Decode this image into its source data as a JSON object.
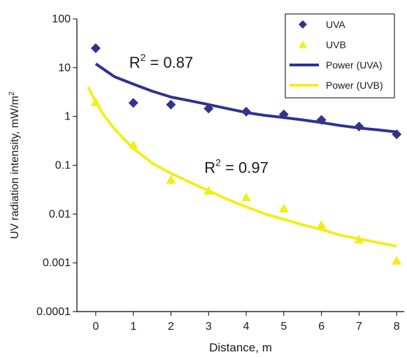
{
  "chart_data": {
    "type": "scatter",
    "xlabel": "Distance, m",
    "ylabel": "UV radiation intensity, mW/m",
    "ylabel_superscript": "2",
    "xlim": [
      -0.5,
      8.2
    ],
    "ylim": [
      0.0001,
      100
    ],
    "y_scale": "log",
    "x_ticks": [
      0,
      1,
      2,
      3,
      4,
      5,
      6,
      7,
      8
    ],
    "x_tick_labels": [
      "0",
      "1",
      "2",
      "3",
      "4",
      "5",
      "6",
      "7",
      "8"
    ],
    "y_ticks": [
      0.0001,
      0.001,
      0.01,
      0.1,
      1,
      10,
      100
    ],
    "y_tick_labels": [
      "0.0001",
      "0.001",
      "0.01",
      "0.1",
      "1",
      "10",
      "100"
    ],
    "grid": false,
    "legend_position": "top-right",
    "series": [
      {
        "name": "UVA",
        "marker": "diamond",
        "color": "#33338a",
        "x": [
          0,
          1,
          2,
          3,
          4,
          5,
          6,
          7,
          8
        ],
        "y": [
          25,
          1.9,
          1.75,
          1.45,
          1.25,
          1.1,
          0.85,
          0.62,
          0.43
        ]
      },
      {
        "name": "UVB",
        "marker": "triangle",
        "color": "#f2ee1c",
        "x": [
          0,
          1,
          2,
          3,
          4,
          5,
          6,
          7,
          8
        ],
        "y": [
          1.95,
          0.26,
          0.05,
          0.03,
          0.022,
          0.013,
          0.006,
          0.003,
          0.0011
        ]
      }
    ],
    "trendlines": [
      {
        "name": "Power (UVA)",
        "color": "#2e3192",
        "x": [
          0,
          0.5,
          1,
          1.5,
          2,
          2.5,
          3,
          3.5,
          4,
          4.5,
          5,
          5.5,
          6,
          6.5,
          7,
          7.5,
          8
        ],
        "y": [
          12,
          6.5,
          4.6,
          3.3,
          2.5,
          2.1,
          1.75,
          1.45,
          1.2,
          1.05,
          0.95,
          0.85,
          0.75,
          0.65,
          0.58,
          0.53,
          0.48
        ]
      },
      {
        "name": "Power (UVB)",
        "color": "#f2ee1c",
        "x": [
          -0.2,
          0,
          0.2,
          0.5,
          1,
          1.5,
          2,
          2.5,
          3,
          3.5,
          4,
          4.5,
          5,
          5.5,
          6,
          6.5,
          7,
          7.5,
          8
        ],
        "y": [
          4,
          2,
          1.1,
          0.55,
          0.22,
          0.11,
          0.068,
          0.045,
          0.03,
          0.02,
          0.014,
          0.01,
          0.0078,
          0.006,
          0.0048,
          0.0037,
          0.0031,
          0.0026,
          0.0022
        ]
      }
    ],
    "annotations": [
      {
        "base": "R",
        "sup": "2",
        "rest": " = 0.87",
        "x": 1.0,
        "y": 10
      },
      {
        "base": "R",
        "sup": "2",
        "rest": " = 0.97",
        "x": 3.0,
        "y": 0.07
      }
    ]
  }
}
